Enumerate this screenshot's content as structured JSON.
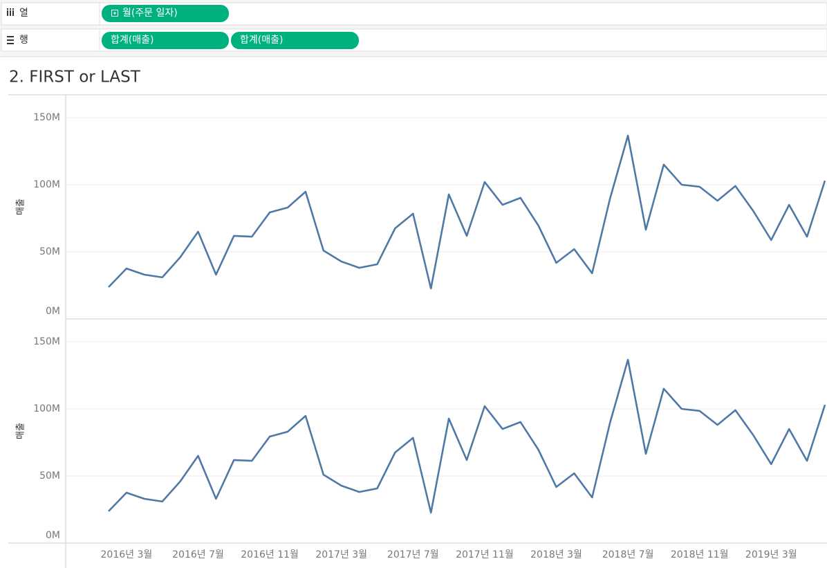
{
  "shelves": {
    "columns": {
      "label": "열",
      "pills": [
        "월(주문 일자)"
      ]
    },
    "rows": {
      "label": "행",
      "pills": [
        "합계(매출)",
        "합계(매출)"
      ]
    }
  },
  "title": "2. FIRST or LAST",
  "chart_data": [
    {
      "type": "line",
      "y_label": "매출",
      "ylim": [
        0,
        167
      ],
      "yticks": [
        {
          "value": 0,
          "label": "0M"
        },
        {
          "value": 50,
          "label": "50M"
        },
        {
          "value": 100,
          "label": "100M"
        },
        {
          "value": 150,
          "label": "150M"
        }
      ],
      "grid": true,
      "series": [
        {
          "name": "합계(매출)",
          "color": "#4e79a7",
          "values": [
            23.7,
            37.6,
            33,
            31,
            45.9,
            65,
            33,
            61.9,
            61.3,
            79.4,
            83,
            94.8,
            51,
            42.8,
            38.1,
            40.7,
            67.5,
            78.4,
            22.7,
            92.8,
            61.9,
            102,
            85,
            90.2,
            69.6,
            41.8,
            52,
            34,
            89.7,
            136.6,
            66.5,
            115,
            100,
            98.5,
            88.1,
            99,
            80.4,
            58.8,
            85,
            61.3,
            103
          ]
        }
      ]
    },
    {
      "type": "line",
      "y_label": "매출",
      "ylim": [
        0,
        167
      ],
      "yticks": [
        {
          "value": 0,
          "label": "0M"
        },
        {
          "value": 50,
          "label": "50M"
        },
        {
          "value": 100,
          "label": "100M"
        },
        {
          "value": 150,
          "label": "150M"
        }
      ],
      "grid": true,
      "categories": [
        null,
        "2016년 3월",
        null,
        null,
        null,
        "2016년 7월",
        null,
        null,
        null,
        "2016년 11월",
        null,
        null,
        null,
        "2017년 3월",
        null,
        null,
        null,
        "2017년 7월",
        null,
        null,
        null,
        "2017년 11월",
        null,
        null,
        null,
        "2018년 3월",
        null,
        null,
        null,
        "2018년 7월",
        null,
        null,
        null,
        "2018년 11월",
        null,
        null,
        null,
        "2019년 3월",
        null,
        null,
        null
      ],
      "series": [
        {
          "name": "합계(매출)",
          "color": "#4e79a7",
          "values": [
            23.7,
            37.6,
            33,
            31,
            45.9,
            65,
            33,
            61.9,
            61.3,
            79.4,
            83,
            94.8,
            51,
            42.8,
            38.1,
            40.7,
            67.5,
            78.4,
            22.7,
            92.8,
            61.9,
            102,
            85,
            90.2,
            69.6,
            41.8,
            52,
            34,
            89.7,
            136.6,
            66.5,
            115,
            100,
            98.5,
            88.1,
            99,
            80.4,
            58.8,
            85,
            61.3,
            103
          ]
        }
      ]
    }
  ]
}
